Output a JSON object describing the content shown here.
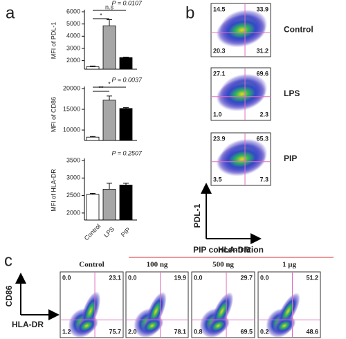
{
  "panel_labels": [
    "a",
    "b",
    "c"
  ],
  "chart_data": [
    {
      "type": "bar",
      "y_label": "MFI of PDL-1",
      "annotation": "P = 0.0107",
      "values": [
        1500,
        4850,
        2250
      ],
      "errors": [
        60,
        500,
        40
      ],
      "colors": [
        "#ffffff",
        "#a6a6a6",
        "#000000"
      ],
      "significance_labels": [
        "*",
        "n.s"
      ],
      "ylim": [
        1300,
        6000
      ],
      "yticks": [
        2000,
        3000,
        4000,
        5000,
        6000
      ]
    },
    {
      "type": "bar",
      "y_label": "MFI of CD86",
      "annotation": "P = 0.0037",
      "values": [
        8300,
        17200,
        15200
      ],
      "errors": [
        150,
        1000,
        200
      ],
      "colors": [
        "#ffffff",
        "#a6a6a6",
        "#000000"
      ],
      "significance_labels": [
        "**",
        "*"
      ],
      "ylim": [
        7500,
        20000
      ],
      "yticks": [
        10000,
        15000,
        20000
      ]
    },
    {
      "type": "bar",
      "y_label": "MFI of HLA-DR",
      "annotation": "P = 0.2507",
      "categories": [
        "Control",
        "LPS",
        "PIP"
      ],
      "values": [
        2530,
        2680,
        2800
      ],
      "errors": [
        30,
        170,
        50
      ],
      "colors": [
        "#ffffff",
        "#a6a6a6",
        "#000000"
      ],
      "ylim": [
        1800,
        3500
      ],
      "yticks": [
        2000,
        2500,
        3000,
        3500
      ]
    }
  ],
  "flow_b": {
    "y_label": "PDL-1",
    "x_label": "HLA-DR",
    "plots": [
      {
        "label": "Control",
        "values": [
          14.5,
          33.9,
          20.3,
          31.2
        ]
      },
      {
        "label": "LPS",
        "values": [
          27.1,
          69.6,
          1,
          2.3
        ],
        "value_labels": [
          "27.1",
          "69.6",
          "1.0",
          "2.3"
        ]
      },
      {
        "label": "PIP",
        "values": [
          23.9,
          65.3,
          3.5,
          7.3
        ]
      }
    ]
  },
  "flow_c": {
    "title": "PIP concentration",
    "y_label": "CD86",
    "x_label": "HLA-DR",
    "plots": [
      {
        "label": "Control",
        "values": [
          0,
          23.1,
          1.2,
          75.7
        ],
        "value_labels": [
          "0.0",
          "23.1",
          "1.2",
          "75.7"
        ]
      },
      {
        "label": "100 ng",
        "values": [
          0,
          19.9,
          2,
          78.1
        ],
        "value_labels": [
          "0.0",
          "19.9",
          "2.0",
          "78.1"
        ]
      },
      {
        "label": "500 ng",
        "values": [
          0,
          29.7,
          0.8,
          69.5
        ],
        "value_labels": [
          "0.0",
          "29.7",
          "0.8",
          "69.5"
        ]
      },
      {
        "label": "1 μg",
        "values": [
          0,
          51.2,
          0.2,
          48.6
        ],
        "value_labels": [
          "0.0",
          "51.2",
          "0.2",
          "48.6"
        ]
      }
    ]
  }
}
